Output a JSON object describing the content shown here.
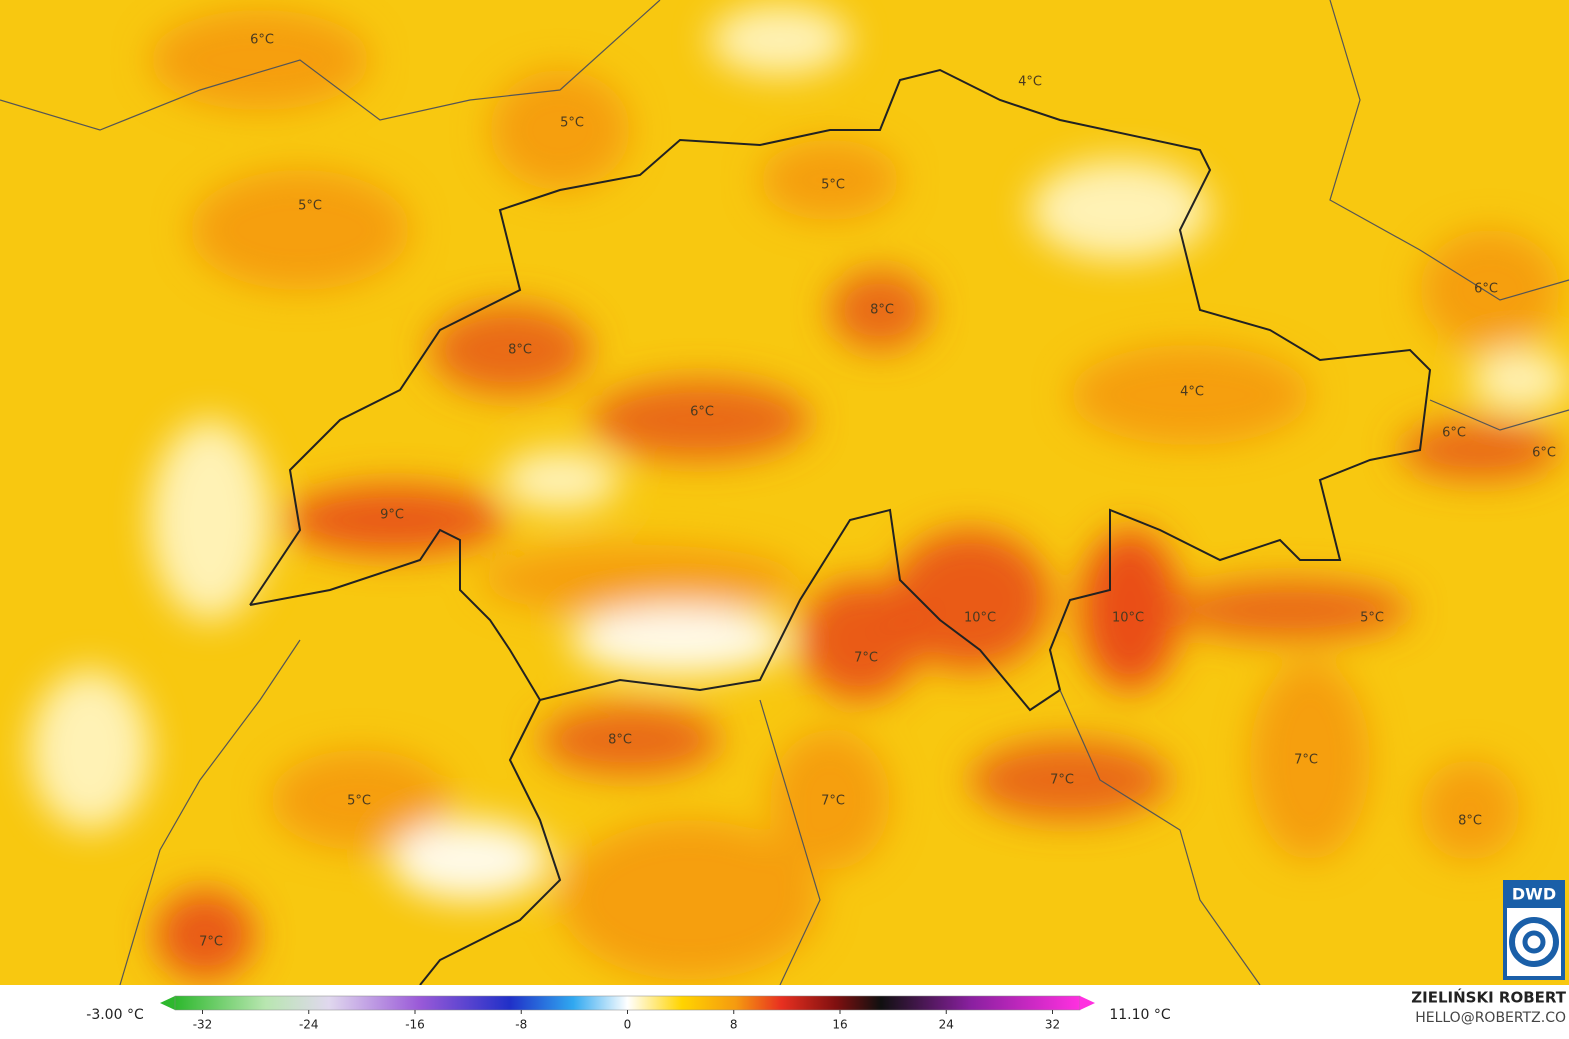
{
  "map": {
    "labels": [
      "6°C",
      "5°C",
      "5°C",
      "5°C",
      "4°C",
      "8°C",
      "8°C",
      "6°C",
      "4°C",
      "6°C",
      "6°C",
      "6°C",
      "9°C",
      "10°C",
      "10°C",
      "5°C",
      "7°C",
      "8°C",
      "7°C",
      "7°C",
      "5°C",
      "7°C",
      "8°C",
      "7°C"
    ]
  },
  "legend": {
    "min_label": "-3.00 °C",
    "max_label": "11.10 °C",
    "range": [
      -35.2,
      35.2
    ],
    "ticks": [
      -32,
      -24,
      -16,
      -8,
      0,
      8,
      16,
      24,
      32
    ]
  },
  "credit": {
    "author": "ZIELIŃSKI ROBERT",
    "email": "HELLO@ROBERTZ.CO",
    "logo": "DWD"
  }
}
